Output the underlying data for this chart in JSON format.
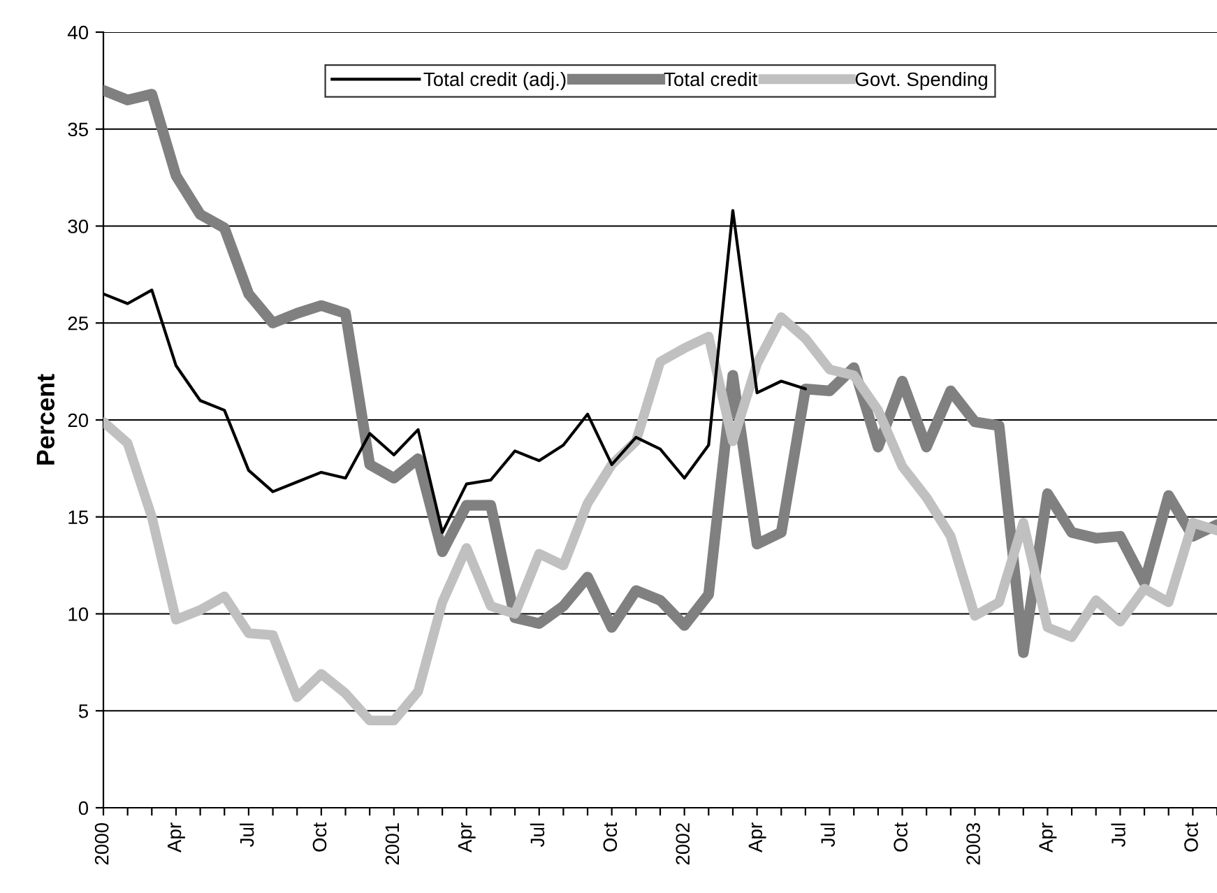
{
  "chart_data": {
    "type": "line",
    "ylabel": "Percent",
    "categories": [
      "2000",
      null,
      null,
      "Apr",
      null,
      null,
      "Jul",
      null,
      null,
      "Oct",
      null,
      null,
      "2001",
      null,
      null,
      "Apr",
      null,
      null,
      "Jul",
      null,
      null,
      "Oct",
      null,
      null,
      "2002",
      null,
      null,
      "Apr",
      null,
      null,
      "Jul",
      null,
      null,
      "Oct",
      null,
      null,
      "2003",
      null,
      null,
      "Apr",
      null,
      null,
      "Jul",
      null,
      null,
      "Oct",
      null
    ],
    "series": [
      {
        "name": "Total credit (adj.)",
        "color": "#000000",
        "values": [
          26.5,
          26.0,
          26.7,
          22.8,
          21.0,
          20.5,
          17.4,
          16.3,
          16.8,
          17.3,
          17.0,
          19.3,
          18.2,
          19.5,
          14.2,
          16.7,
          16.9,
          18.4,
          17.9,
          18.7,
          20.3,
          17.7,
          19.1,
          18.5,
          17.0,
          18.7,
          30.8,
          21.4,
          22.0,
          21.6,
          null,
          null,
          null,
          null,
          null,
          null,
          null,
          null,
          null,
          null,
          null,
          null,
          null,
          null,
          null,
          null,
          null
        ]
      },
      {
        "name": "Total credit",
        "color": "#808080",
        "values": [
          37.0,
          36.5,
          36.8,
          32.6,
          30.6,
          29.9,
          26.5,
          25.0,
          25.5,
          25.9,
          25.5,
          17.7,
          17.0,
          18.0,
          13.2,
          15.6,
          15.6,
          9.8,
          9.5,
          10.4,
          11.9,
          9.3,
          11.2,
          10.7,
          9.4,
          11.0,
          22.3,
          13.6,
          14.2,
          21.6,
          21.5,
          22.7,
          18.6,
          22.0,
          18.6,
          21.5,
          19.9,
          19.7,
          8.0,
          16.2,
          14.2,
          13.9,
          14.0,
          11.6,
          16.1,
          14.0,
          14.6
        ]
      },
      {
        "name": "Govt. Spending",
        "color": "#c0c0c0",
        "values": [
          19.9,
          18.8,
          15.0,
          9.7,
          10.2,
          10.9,
          9.0,
          8.9,
          5.7,
          6.9,
          5.9,
          4.5,
          4.5,
          6.0,
          10.6,
          13.4,
          10.4,
          10.0,
          13.1,
          12.5,
          15.7,
          17.7,
          18.9,
          23.0,
          23.7,
          24.3,
          18.9,
          22.9,
          25.3,
          24.2,
          22.6,
          22.3,
          20.5,
          17.6,
          16.0,
          14.0,
          9.9,
          10.6,
          14.7,
          9.3,
          8.8,
          10.7,
          9.6,
          11.3,
          10.6,
          14.7,
          14.3
        ]
      }
    ],
    "ylim": [
      0,
      40
    ],
    "yticks": [
      0,
      5,
      10,
      15,
      20,
      25,
      30,
      35,
      40
    ],
    "grid": "y",
    "legend": "top",
    "marker": "none",
    "line_style": "solid"
  }
}
